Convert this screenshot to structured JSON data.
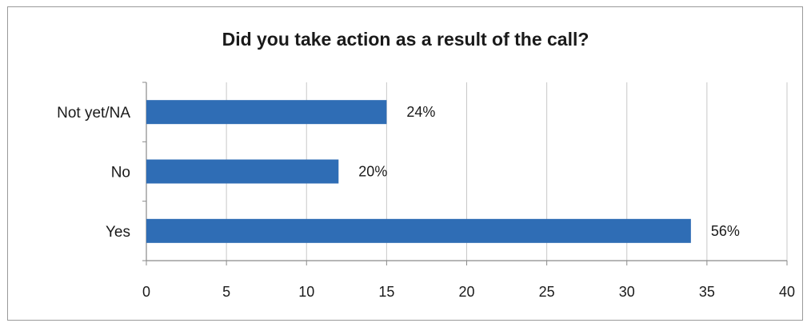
{
  "chart_data": {
    "type": "bar",
    "orientation": "horizontal",
    "title": "Did you take action as a result of the call?",
    "xlabel": "",
    "ylabel": "",
    "categories": [
      "Not yet/NA",
      "No",
      "Yes"
    ],
    "values": [
      15,
      12,
      34
    ],
    "data_labels": [
      "24%",
      "20%",
      "56%"
    ],
    "xlim": [
      0,
      40
    ],
    "xticks": [
      0,
      5,
      10,
      15,
      20,
      25,
      30,
      35,
      40
    ],
    "grid": "vertical",
    "legend": "none",
    "colors": {
      "bar": "#2f6db5",
      "grid": "#c8c8c8",
      "axis": "#8a8a8a"
    }
  }
}
